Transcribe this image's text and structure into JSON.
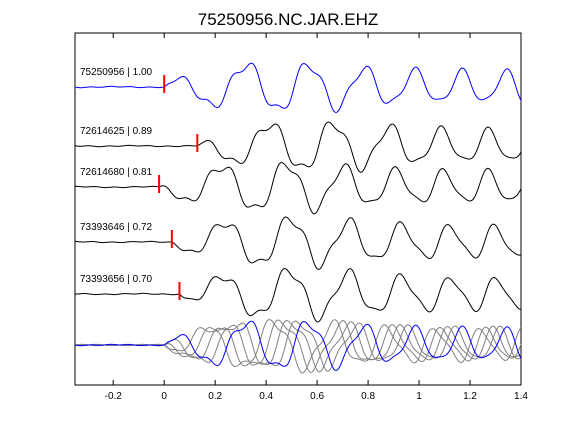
{
  "chart_data": {
    "type": "line",
    "title": "75250956.NC.JAR.EHZ",
    "xlabel": "",
    "ylabel": "",
    "xlim": [
      -0.35,
      1.4
    ],
    "x_ticks": [
      {
        "value": -0.2,
        "label": "-0.2"
      },
      {
        "value": 0,
        "label": "0"
      },
      {
        "value": 0.2,
        "label": "0.2"
      },
      {
        "value": 0.4,
        "label": "0.4"
      },
      {
        "value": 0.6,
        "label": "0.6"
      },
      {
        "value": 0.8,
        "label": "0.8"
      },
      {
        "value": 1.0,
        "label": "1"
      },
      {
        "value": 1.2,
        "label": "1.2"
      },
      {
        "value": 1.4,
        "label": "1.4"
      }
    ],
    "grid": false,
    "series": [
      {
        "id": "75250956",
        "correlation": "1.00",
        "label": "75250956 | 1.00",
        "pick_time": 0.0,
        "color": "#0000ff"
      },
      {
        "id": "72614625",
        "correlation": "0.89",
        "label": "72614625 | 0.89",
        "pick_time": 0.13,
        "color": "#000000"
      },
      {
        "id": "72614680",
        "correlation": "0.81",
        "label": "72614680 | 0.81",
        "pick_time": -0.02,
        "color": "#000000"
      },
      {
        "id": "73393646",
        "correlation": "0.72",
        "label": "73393646 | 0.72",
        "pick_time": 0.03,
        "color": "#000000"
      },
      {
        "id": "73393656",
        "correlation": "0.70",
        "label": "73393656 | 0.70",
        "pick_time": 0.06,
        "color": "#000000"
      }
    ],
    "stack": {
      "template_color": "#0000ff",
      "member_color": "#808080"
    },
    "pick_color": "#ff0000"
  }
}
